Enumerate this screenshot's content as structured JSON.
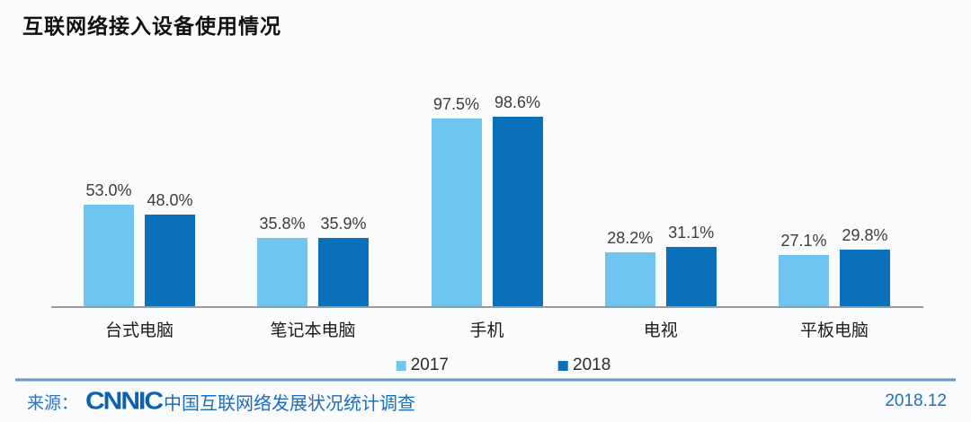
{
  "title": "互联网络接入设备使用情况",
  "chart_data": {
    "type": "bar",
    "categories": [
      "台式电脑",
      "笔记本电脑",
      "手机",
      "电视",
      "平板电脑"
    ],
    "series": [
      {
        "name": "2017",
        "color": "#6EC5F0",
        "values": [
          53.0,
          35.8,
          97.5,
          28.2,
          27.1
        ]
      },
      {
        "name": "2018",
        "color": "#0A70BC",
        "values": [
          48.0,
          35.9,
          98.6,
          31.1,
          29.8
        ]
      }
    ],
    "value_labels": [
      [
        "53.0%",
        "35.8%",
        "97.5%",
        "28.2%",
        "27.1%"
      ],
      [
        "48.0%",
        "35.9%",
        "98.6%",
        "31.1%",
        "29.8%"
      ]
    ],
    "ylim": [
      0,
      100
    ],
    "grid": false,
    "legend_position": "bottom-center",
    "axis_line_color": "#9A9A9A",
    "background_color": "#FAFBFC"
  },
  "footer": {
    "source_prefix": "来源：",
    "logo": "CNNIC",
    "source_name": "中国互联网络发展状况统计调查",
    "date": "2018.12"
  }
}
